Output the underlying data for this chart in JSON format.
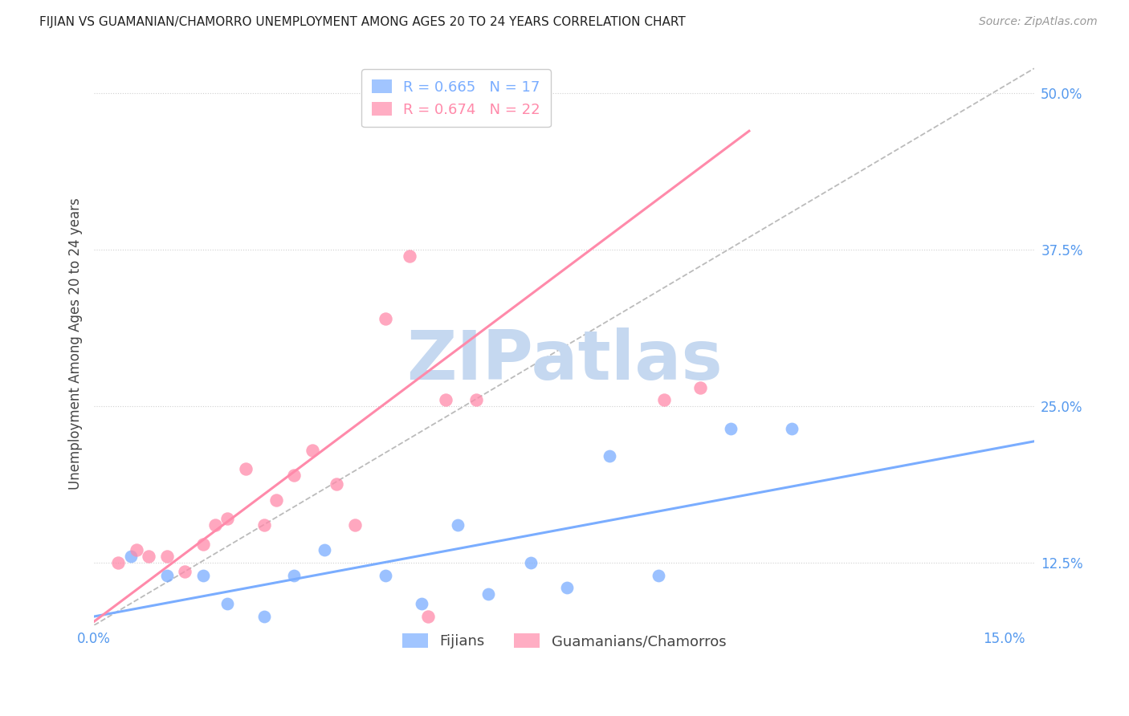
{
  "title": "FIJIAN VS GUAMANIAN/CHAMORRO UNEMPLOYMENT AMONG AGES 20 TO 24 YEARS CORRELATION CHART",
  "source": "Source: ZipAtlas.com",
  "ylabel": "Unemployment Among Ages 20 to 24 years",
  "xlim": [
    0.0,
    0.155
  ],
  "ylim": [
    0.075,
    0.525
  ],
  "xticks": [
    0.0,
    0.025,
    0.05,
    0.075,
    0.1,
    0.125,
    0.15
  ],
  "yticks": [
    0.125,
    0.25,
    0.375,
    0.5
  ],
  "xtick_labels": [
    "0.0%",
    "",
    "",
    "",
    "",
    "",
    "15.0%"
  ],
  "ytick_labels": [
    "12.5%",
    "25.0%",
    "37.5%",
    "50.0%"
  ],
  "fijian_color": "#7aadff",
  "guamanian_color": "#ff8aaa",
  "fijian_R": "0.665",
  "fijian_N": "17",
  "guamanian_R": "0.674",
  "guamanian_N": "22",
  "watermark_text": "ZIPatlas",
  "watermark_color": "#c5d8f0",
  "grid_color": "#d0d0d0",
  "fijian_x": [
    0.006,
    0.012,
    0.018,
    0.022,
    0.028,
    0.033,
    0.038,
    0.048,
    0.054,
    0.06,
    0.065,
    0.072,
    0.078,
    0.085,
    0.093,
    0.105,
    0.115
  ],
  "fijian_y": [
    0.13,
    0.115,
    0.115,
    0.092,
    0.082,
    0.115,
    0.135,
    0.115,
    0.092,
    0.155,
    0.1,
    0.125,
    0.105,
    0.21,
    0.115,
    0.232,
    0.232
  ],
  "guamanian_x": [
    0.004,
    0.007,
    0.009,
    0.012,
    0.015,
    0.018,
    0.02,
    0.022,
    0.025,
    0.028,
    0.03,
    0.033,
    0.036,
    0.04,
    0.043,
    0.048,
    0.052,
    0.055,
    0.058,
    0.063,
    0.094,
    0.1
  ],
  "guamanian_y": [
    0.125,
    0.135,
    0.13,
    0.13,
    0.118,
    0.14,
    0.155,
    0.16,
    0.2,
    0.155,
    0.175,
    0.195,
    0.215,
    0.188,
    0.155,
    0.32,
    0.37,
    0.082,
    0.255,
    0.255,
    0.255,
    0.265
  ],
  "fijian_line": [
    [
      0.0,
      0.082
    ],
    [
      0.155,
      0.222
    ]
  ],
  "guamanian_line": [
    [
      0.0,
      0.078
    ],
    [
      0.108,
      0.47
    ]
  ],
  "diag_line": [
    [
      0.0,
      0.075
    ],
    [
      0.155,
      0.52
    ]
  ],
  "title_fontsize": 11,
  "source_fontsize": 10,
  "tick_fontsize": 12,
  "ylabel_fontsize": 12
}
